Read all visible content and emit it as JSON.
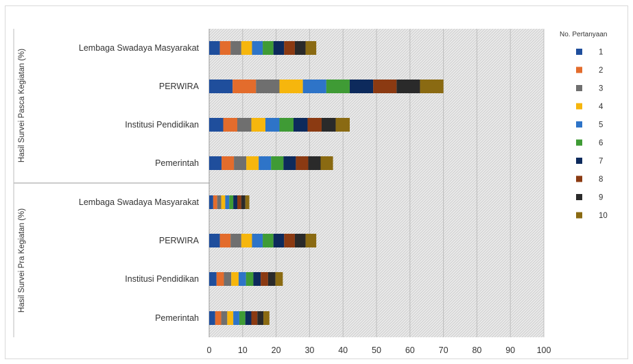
{
  "chart_data": {
    "type": "bar",
    "orientation": "horizontal",
    "stacked": true,
    "title": "",
    "xlim": [
      0,
      100
    ],
    "xticks": [
      "0",
      "10",
      "20",
      "30",
      "40",
      "50",
      "60",
      "70",
      "80",
      "90",
      "100"
    ],
    "legend": {
      "title": "No. Pertanyaan",
      "position": "right",
      "entries": [
        "1",
        "2",
        "3",
        "4",
        "5",
        "6",
        "7",
        "8",
        "9",
        "10"
      ]
    },
    "colors": [
      "#1f4e9c",
      "#e36c2c",
      "#6f6f6f",
      "#f6b60d",
      "#2e74c8",
      "#3f9b35",
      "#0d2a5c",
      "#8b3a12",
      "#2a2a2a",
      "#8a6a12"
    ],
    "plot_background": "hatched-gray",
    "groups": [
      {
        "name": "Hasil Survei Pasca Kegiatan (%)",
        "categories": [
          "Lembaga Swadaya Masyarakat",
          "PERWIRA",
          "Institusi Pendidikan",
          "Pemerintah"
        ],
        "values": [
          [
            3.2,
            3.2,
            3.2,
            3.2,
            3.2,
            3.2,
            3.2,
            3.2,
            3.2,
            3.2
          ],
          [
            7.0,
            7.0,
            7.0,
            7.0,
            7.0,
            7.0,
            7.0,
            7.0,
            7.0,
            7.0
          ],
          [
            4.2,
            4.2,
            4.2,
            4.2,
            4.2,
            4.2,
            4.2,
            4.2,
            4.2,
            4.2
          ],
          [
            3.7,
            3.7,
            3.7,
            3.7,
            3.7,
            3.7,
            3.7,
            3.7,
            3.7,
            3.7
          ]
        ]
      },
      {
        "name": "Hasil Survei Pra Kegiatan (%)",
        "categories": [
          "Lembaga Swadaya Masyarakat",
          "PERWIRA",
          "Institusi Pendidikan",
          "Pemerintah"
        ],
        "values": [
          [
            1.2,
            1.2,
            1.2,
            1.2,
            1.2,
            1.2,
            1.2,
            1.2,
            1.2,
            1.2
          ],
          [
            3.2,
            3.2,
            3.2,
            3.2,
            3.2,
            3.2,
            3.2,
            3.2,
            3.2,
            3.2
          ],
          [
            2.2,
            2.2,
            2.2,
            2.2,
            2.2,
            2.2,
            2.2,
            2.2,
            2.2,
            2.2
          ],
          [
            1.8,
            1.8,
            1.8,
            1.8,
            1.8,
            1.8,
            1.8,
            1.8,
            1.8,
            1.8
          ]
        ]
      }
    ]
  }
}
